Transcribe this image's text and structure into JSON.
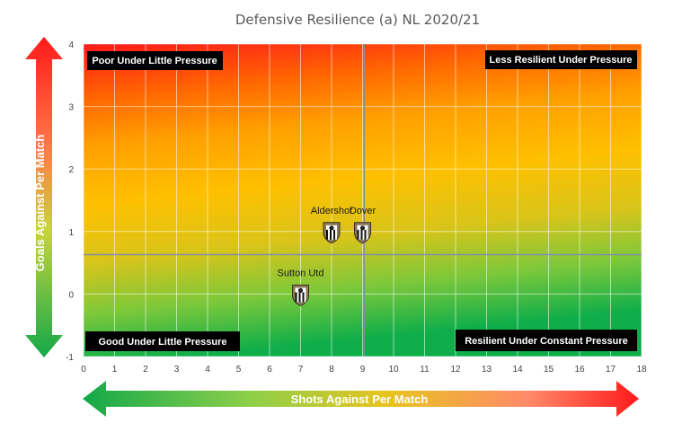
{
  "chart_data": {
    "type": "scatter",
    "title": "Defensive Resilience (a) NL 2020/21",
    "xlabel": "Shots Against Per Match",
    "ylabel": "Goals Against Per Match",
    "xlim": [
      0,
      18
    ],
    "ylim": [
      -1,
      4
    ],
    "xticks": [
      0,
      1,
      2,
      3,
      4,
      5,
      6,
      7,
      8,
      9,
      10,
      11,
      12,
      13,
      14,
      15,
      16,
      17,
      18
    ],
    "yticks": [
      -1,
      0,
      1,
      2,
      3,
      4
    ],
    "grid": true,
    "reference_lines": {
      "x": 9.05,
      "y": 0.63
    },
    "quadrants": {
      "top_left": "Poor Under Little Pressure",
      "top_right": "Less Resilient Under Pressure",
      "bottom_left": "Good Under Little Pressure",
      "bottom_right": "Resilient Under Constant Pressure"
    },
    "points": [
      {
        "label": "Aldershot",
        "x": 8.0,
        "y": 1.0
      },
      {
        "label": "Dover",
        "x": 9.0,
        "y": 1.0
      },
      {
        "label": "Sutton Utd",
        "x": 7.0,
        "y": 0.0
      }
    ],
    "colors": {
      "red": "#ff1a1a",
      "orange": "#ff9a00",
      "yellow": "#ffc000",
      "olive": "#cfc41e",
      "green": "#0fae4a",
      "quad_box": "#000000",
      "ref_line": "#7f8fa6"
    }
  }
}
